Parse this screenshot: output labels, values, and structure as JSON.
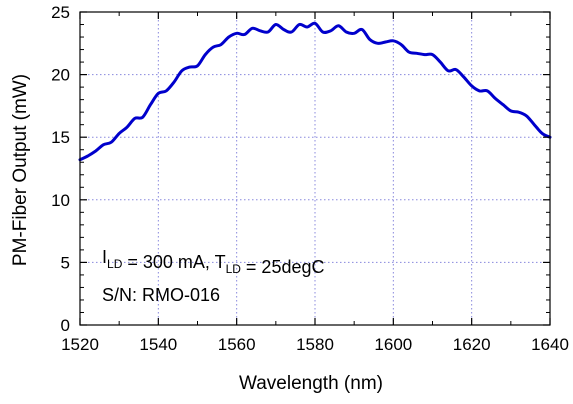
{
  "chart_data": {
    "type": "line",
    "title": "",
    "xlabel": "Wavelength (nm)",
    "ylabel": "PM-Fiber Output (mW)",
    "xlim": [
      1520,
      1640
    ],
    "ylim": [
      0,
      25
    ],
    "xticks": [
      1520,
      1540,
      1560,
      1580,
      1600,
      1620,
      1640
    ],
    "yticks": [
      0,
      5,
      10,
      15,
      20,
      25
    ],
    "grid": true,
    "series": [
      {
        "color": "#0000CC",
        "x": [
          1520,
          1522,
          1524,
          1526,
          1528,
          1530,
          1532,
          1534,
          1536,
          1538,
          1540,
          1542,
          1544,
          1546,
          1548,
          1550,
          1552,
          1554,
          1556,
          1558,
          1560,
          1562,
          1564,
          1566,
          1568,
          1570,
          1572,
          1574,
          1576,
          1578,
          1580,
          1582,
          1584,
          1586,
          1588,
          1590,
          1592,
          1594,
          1596,
          1598,
          1600,
          1602,
          1604,
          1606,
          1608,
          1610,
          1612,
          1614,
          1616,
          1618,
          1620,
          1622,
          1624,
          1626,
          1628,
          1630,
          1632,
          1634,
          1636,
          1638,
          1640
        ],
        "y": [
          13.2,
          13.5,
          13.9,
          14.4,
          14.6,
          15.3,
          15.8,
          16.5,
          16.6,
          17.6,
          18.5,
          18.7,
          19.4,
          20.3,
          20.6,
          20.7,
          21.6,
          22.2,
          22.4,
          23.0,
          23.3,
          23.2,
          23.7,
          23.5,
          23.4,
          24.0,
          23.6,
          23.4,
          24.0,
          23.8,
          24.1,
          23.4,
          23.5,
          23.9,
          23.4,
          23.3,
          23.6,
          22.8,
          22.5,
          22.6,
          22.7,
          22.4,
          21.8,
          21.7,
          21.6,
          21.6,
          21.0,
          20.3,
          20.4,
          19.8,
          19.1,
          18.7,
          18.7,
          18.1,
          17.6,
          17.1,
          17.0,
          16.7,
          16.0,
          15.3,
          15.0
        ]
      }
    ],
    "annotations": [
      {
        "parts": [
          {
            "text": "I",
            "sub": false
          },
          {
            "text": "LD",
            "sub": true
          },
          {
            "text": " = 300 mA, T",
            "sub": false
          },
          {
            "text": "LD",
            "sub": true
          },
          {
            "text": " = 25degC",
            "sub": false
          }
        ]
      },
      {
        "text": "S/N: RMO-016"
      }
    ]
  }
}
